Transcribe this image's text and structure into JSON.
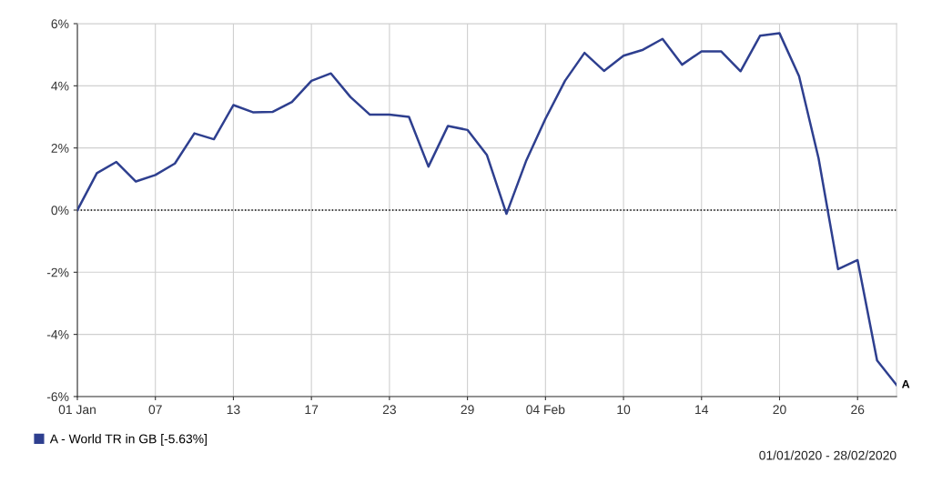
{
  "chart_data": {
    "type": "line",
    "categories": [
      "01 Jan",
      null,
      null,
      null,
      "07",
      null,
      null,
      null,
      "13",
      null,
      null,
      null,
      "17",
      null,
      null,
      null,
      "23",
      null,
      null,
      null,
      "29",
      null,
      null,
      null,
      "04 Feb",
      null,
      null,
      null,
      "10",
      null,
      null,
      null,
      "14",
      null,
      null,
      null,
      "20",
      null,
      null,
      null,
      "26",
      null,
      null
    ],
    "series": [
      {
        "name": "A - World TR in GB [-5.63%]",
        "color": "#2e3f8f",
        "values": [
          0,
          1.19,
          1.55,
          0.92,
          1.13,
          1.5,
          2.47,
          2.28,
          3.38,
          3.15,
          3.16,
          3.48,
          4.16,
          4.4,
          3.64,
          3.07,
          3.07,
          3.0,
          1.4,
          2.71,
          2.58,
          1.77,
          -0.12,
          1.57,
          2.94,
          4.16,
          5.06,
          4.48,
          4.97,
          5.16,
          5.51,
          4.68,
          5.11,
          5.11,
          4.47,
          5.61,
          5.69,
          4.31,
          1.67,
          -1.9,
          -1.61,
          -4.84,
          -5.63
        ]
      }
    ],
    "ylim": [
      -6,
      6
    ],
    "yticks": [
      {
        "value": -6,
        "label": "-6%"
      },
      {
        "value": -4,
        "label": "-4%"
      },
      {
        "value": -2,
        "label": "-2%"
      },
      {
        "value": 0,
        "label": "0%"
      },
      {
        "value": 2,
        "label": "2%"
      },
      {
        "value": 4,
        "label": "4%"
      },
      {
        "value": 6,
        "label": "6%"
      }
    ],
    "ref_lines": [
      {
        "axis": "y",
        "value": 0,
        "color": "#000000",
        "line_style": "dotted"
      }
    ],
    "annotations": [
      "A",
      "01/01/2020 - 28/02/2020"
    ],
    "grid": true,
    "legend": "bottom left",
    "marker": "none",
    "line_style": "solid"
  }
}
